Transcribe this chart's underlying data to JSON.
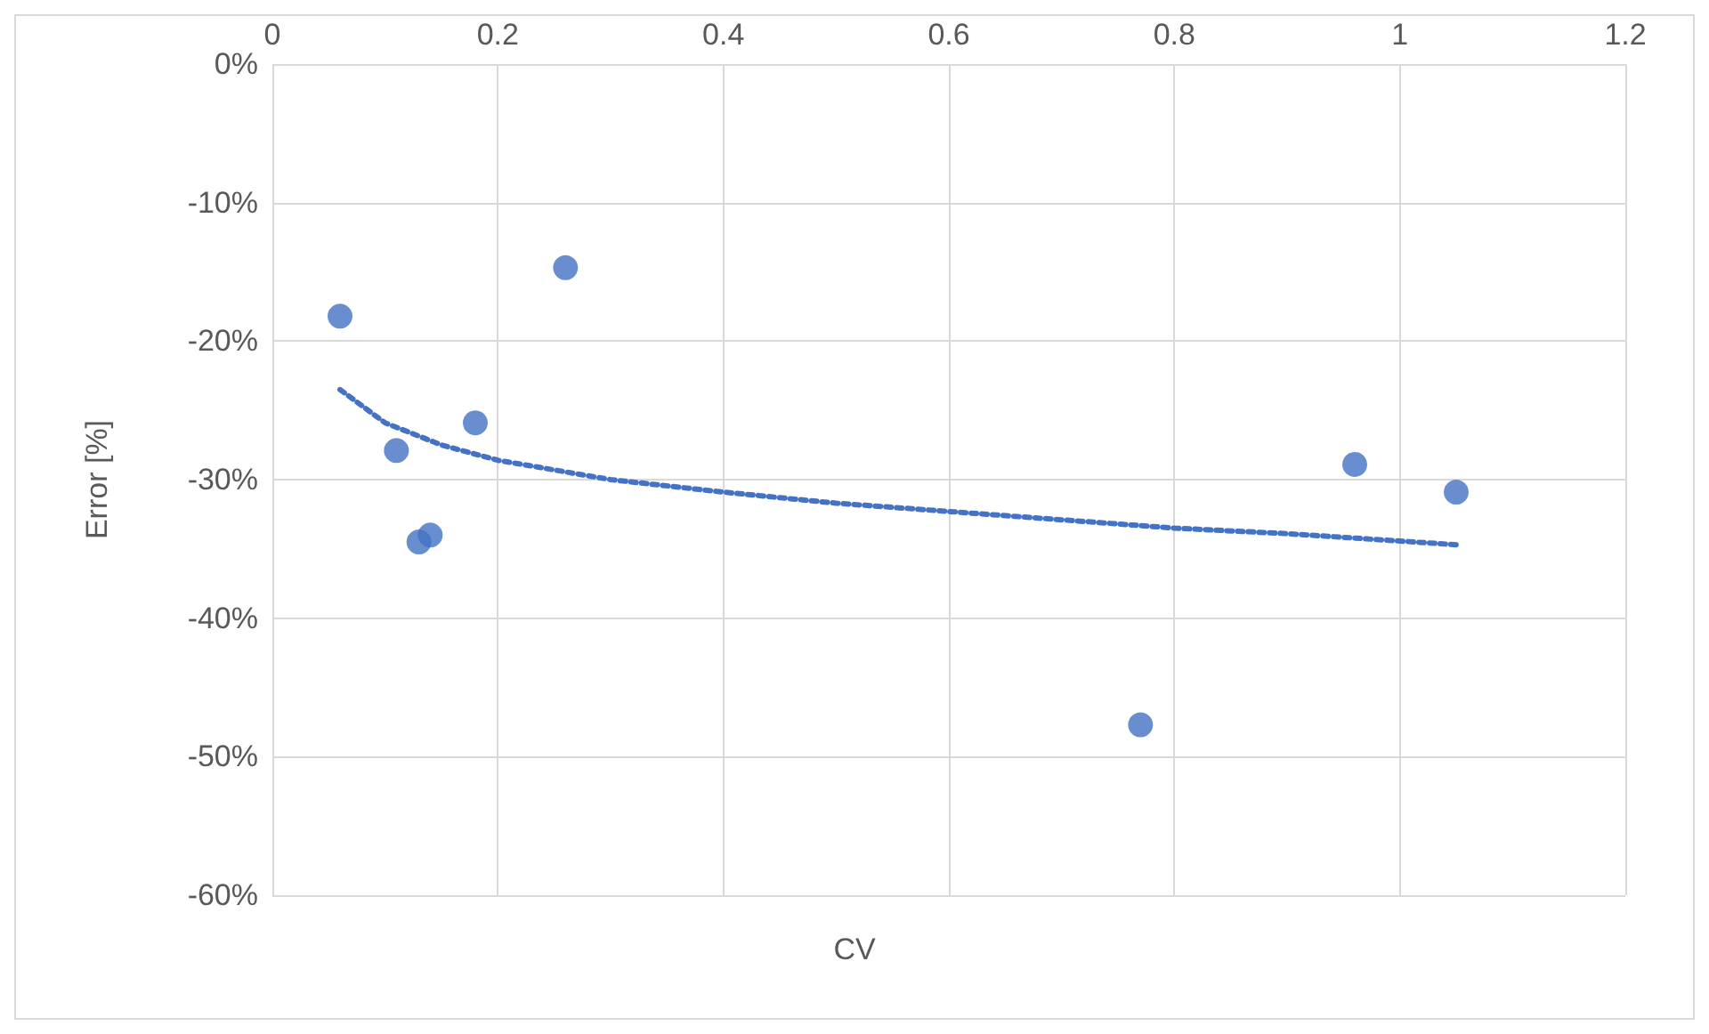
{
  "chart_data": {
    "type": "scatter",
    "xlabel": "CV",
    "ylabel": "Error [%]",
    "xlim": [
      0,
      1.2
    ],
    "xticks": [
      0,
      0.2,
      0.4,
      0.6,
      0.8,
      1,
      1.2
    ],
    "ylim": [
      -60,
      0
    ],
    "yticks": [
      {
        "value": 0,
        "label": "0%"
      },
      {
        "value": -10,
        "label": "-10%"
      },
      {
        "value": -20,
        "label": "-20%"
      },
      {
        "value": -30,
        "label": "-30%"
      },
      {
        "value": -40,
        "label": "-40%"
      },
      {
        "value": -50,
        "label": "-50%"
      },
      {
        "value": -60,
        "label": "-60%"
      }
    ],
    "grid": true,
    "series": [
      {
        "color": "#4472c4",
        "marker": "circle",
        "x": [
          0.06,
          0.26,
          0.18,
          0.11,
          0.13,
          0.14,
          0.77,
          0.96,
          1.05
        ],
        "values": [
          -18.2,
          -14.7,
          -25.9,
          -27.9,
          -34.5,
          -34.0,
          -47.7,
          -28.9,
          -30.9
        ]
      },
      {
        "type": "line",
        "color": "#4472c4",
        "marker": "none",
        "line_style": "dotted",
        "x": [
          0.06,
          0.1,
          0.15,
          0.2,
          0.3,
          0.4,
          0.5,
          0.6,
          0.7,
          0.8,
          0.9,
          1.05
        ],
        "values": [
          -23.5,
          -25.9,
          -27.5,
          -28.6,
          -30.0,
          -30.9,
          -31.7,
          -32.3,
          -32.9,
          -33.5,
          -33.9,
          -34.7
        ]
      }
    ]
  }
}
